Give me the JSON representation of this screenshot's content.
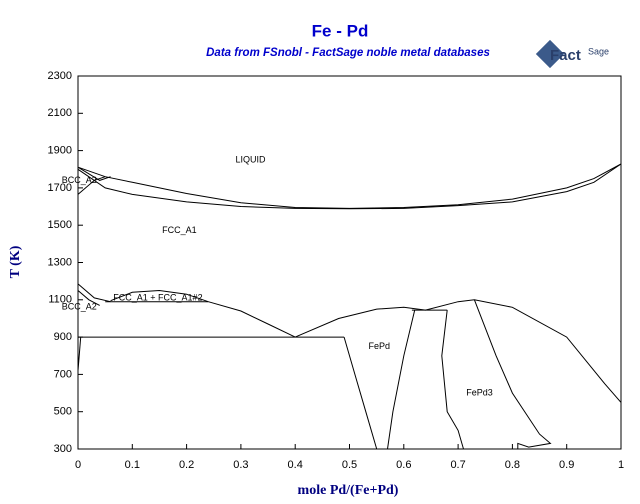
{
  "chart_data": {
    "type": "line",
    "title": "Fe - Pd",
    "subtitle": "Data from FSnobl - FactSage noble metal databases",
    "logo": [
      "Fact",
      "Sage"
    ],
    "x_label": "mole Pd/(Fe+Pd)",
    "y_label": "T (K)",
    "xlim": [
      0,
      1
    ],
    "ylim": [
      300,
      2300
    ],
    "xticks": [
      0,
      0.1,
      0.2,
      0.3,
      0.4,
      0.5,
      0.6,
      0.7,
      0.8,
      0.9,
      1
    ],
    "yticks": [
      300,
      500,
      700,
      900,
      1100,
      1300,
      1500,
      1700,
      1900,
      2100,
      2300
    ],
    "color": "#000000",
    "series": [
      {
        "x": [
          0,
          0.05,
          0.1,
          0.2,
          0.3,
          0.4,
          0.5,
          0.6,
          0.7,
          0.8,
          0.9,
          0.95,
          1
        ],
        "values": [
          1811,
          1760,
          1730,
          1670,
          1620,
          1595,
          1590,
          1595,
          1610,
          1640,
          1700,
          1750,
          1828
        ]
      },
      {
        "x": [
          0,
          0.05,
          0.1,
          0.2,
          0.3,
          0.4,
          0.5,
          0.6,
          0.7,
          0.8,
          0.9,
          0.95,
          1
        ],
        "values": [
          1800,
          1700,
          1665,
          1625,
          1600,
          1590,
          1588,
          1590,
          1605,
          1625,
          1680,
          1730,
          1828
        ]
      },
      {
        "x": [
          0,
          0.04,
          0.06
        ],
        "values": [
          1811,
          1740,
          1760
        ]
      },
      {
        "x": [
          0,
          0.03,
          0.05
        ],
        "values": [
          1665,
          1740,
          1760
        ]
      },
      {
        "x": [
          0,
          0.03,
          0.06
        ],
        "values": [
          1185,
          1110,
          1090
        ]
      },
      {
        "x": [
          0,
          0.02,
          0.04
        ],
        "values": [
          1150,
          1100,
          1070
        ]
      },
      {
        "x": [
          0.06,
          0.1,
          0.15,
          0.2,
          0.24
        ],
        "values": [
          1095,
          1140,
          1150,
          1130,
          1090
        ]
      },
      {
        "x": [
          0.05,
          0.24
        ],
        "values": [
          1090,
          1090
        ]
      },
      {
        "x": [
          0.24,
          0.3,
          0.35,
          0.4
        ],
        "values": [
          1090,
          1040,
          970,
          900
        ]
      },
      {
        "x": [
          0,
          0.49
        ],
        "values": [
          900,
          900
        ]
      },
      {
        "x": [
          0.4,
          0.48,
          0.55,
          0.6,
          0.64
        ],
        "values": [
          900,
          1000,
          1050,
          1060,
          1045
        ]
      },
      {
        "x": [
          0.49,
          0.51,
          0.53,
          0.55
        ],
        "values": [
          900,
          700,
          500,
          300
        ]
      },
      {
        "x": [
          0.62,
          0.6,
          0.58,
          0.57
        ],
        "values": [
          1045,
          800,
          500,
          300
        ]
      },
      {
        "x": [
          0.615,
          0.68
        ],
        "values": [
          1045,
          1045
        ]
      },
      {
        "x": [
          0.68,
          0.67,
          0.68,
          0.7,
          0.71
        ],
        "values": [
          1045,
          800,
          500,
          400,
          300
        ]
      },
      {
        "x": [
          0.64,
          0.7,
          0.73,
          0.8,
          0.9,
          0.97,
          1
        ],
        "values": [
          1045,
          1090,
          1100,
          1060,
          900,
          650,
          550
        ]
      },
      {
        "x": [
          0.73,
          0.77,
          0.8,
          0.85,
          0.87,
          0.83,
          0.81,
          0.81
        ],
        "values": [
          1100,
          800,
          600,
          380,
          330,
          310,
          330,
          300
        ]
      },
      {
        "x": [
          0,
          0.005
        ],
        "values": [
          720,
          900
        ]
      }
    ],
    "annotations": [
      {
        "text": "LIQUID",
        "x": 0.29,
        "y": 1850
      },
      {
        "text": "FCC_A1",
        "x": 0.155,
        "y": 1470
      },
      {
        "text": "BCC_A2",
        "x": -0.03,
        "y": 1740
      },
      {
        "text": "FCC_A1 + FCC_A1#2",
        "x": 0.065,
        "y": 1110
      },
      {
        "text": "BCC_A2",
        "x": -0.03,
        "y": 1060
      },
      {
        "text": "FePd",
        "x": 0.535,
        "y": 850
      },
      {
        "text": "FePd3",
        "x": 0.715,
        "y": 600
      }
    ]
  }
}
